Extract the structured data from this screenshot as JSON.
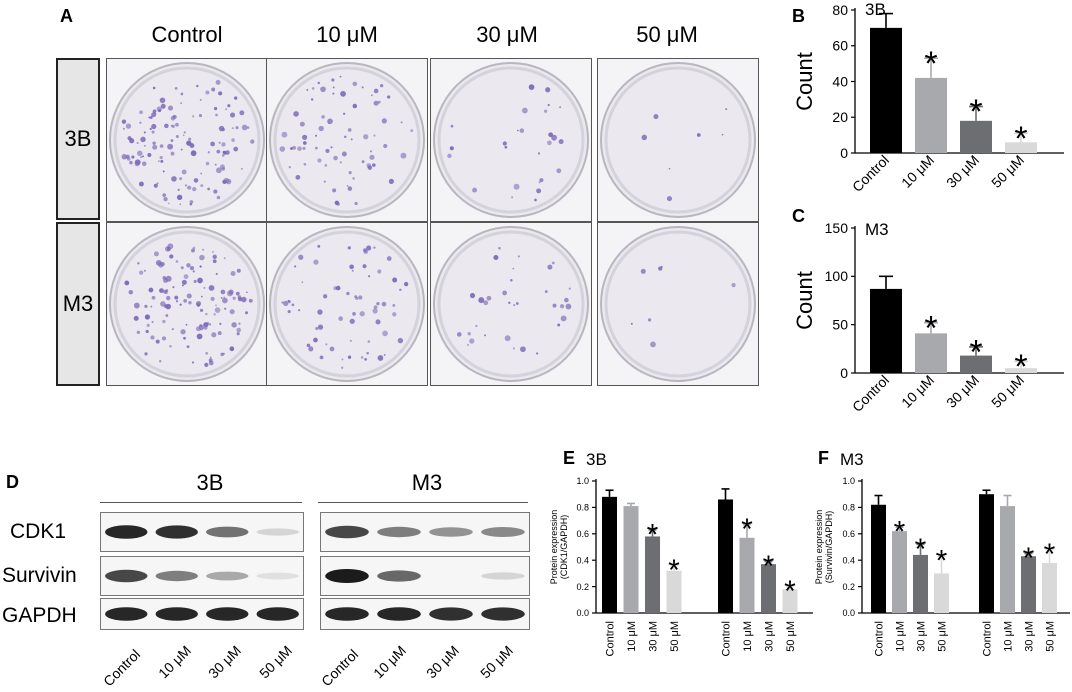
{
  "panel_a": {
    "letter": "A",
    "columns": [
      "Control",
      "10 μM",
      "30 μM",
      "50 μM"
    ],
    "rows": [
      "3B",
      "M3"
    ],
    "colony_density": [
      [
        1.0,
        0.55,
        0.2,
        0.05
      ],
      [
        1.0,
        0.5,
        0.25,
        0.05
      ]
    ]
  },
  "panel_d": {
    "letter": "D",
    "groups": [
      "3B",
      "M3"
    ],
    "proteins": [
      "CDK1",
      "Survivin",
      "GAPDH"
    ],
    "lanes": [
      "Control",
      "10 μM",
      "30 μM",
      "50 μM"
    ],
    "band_intensity": {
      "3B": [
        [
          0.95,
          0.9,
          0.6,
          0.15
        ],
        [
          0.8,
          0.55,
          0.35,
          0.1
        ],
        [
          0.95,
          0.95,
          0.95,
          0.95
        ]
      ],
      "M3": [
        [
          0.8,
          0.55,
          0.45,
          0.5
        ],
        [
          1.0,
          0.65,
          0.0,
          0.15
        ],
        [
          0.95,
          0.95,
          0.9,
          0.9
        ]
      ]
    }
  },
  "colors": {
    "control": "#000000",
    "10uM": "#a7a9ac",
    "30uM": "#6d6e71",
    "50uM": "#d9d9d9"
  },
  "chart_data": [
    {
      "panel": "B",
      "type": "bar",
      "title": "3B",
      "ylabel": "Count",
      "categories": [
        "Control",
        "10 μM",
        "30 μM",
        "50 μM"
      ],
      "values": [
        70,
        42,
        18,
        6
      ],
      "errors": [
        8,
        11,
        8,
        5
      ],
      "significant": [
        false,
        true,
        true,
        true
      ],
      "ylim": [
        0,
        80
      ],
      "yticks": [
        0,
        20,
        40,
        60,
        80
      ]
    },
    {
      "panel": "C",
      "type": "bar",
      "title": "M3",
      "ylabel": "Count",
      "categories": [
        "Control",
        "10 μM",
        "30 μM",
        "50 μM"
      ],
      "values": [
        87,
        41,
        18,
        5
      ],
      "errors": [
        13,
        11,
        9,
        7
      ],
      "significant": [
        false,
        true,
        true,
        true
      ],
      "ylim": [
        0,
        150
      ],
      "yticks": [
        0,
        50,
        100,
        150
      ]
    },
    {
      "panel": "E",
      "type": "bar",
      "title": "3B",
      "ylabel": "Protein expression (CDK1/GAPDH)",
      "categories": [
        "Control",
        "10 μM",
        "30 μM",
        "50 μM",
        "Control",
        "10 μM",
        "30 μM",
        "50 μM"
      ],
      "values": [
        0.88,
        0.81,
        0.58,
        0.32,
        0.86,
        0.57,
        0.37,
        0.18
      ],
      "errors": [
        0.05,
        0.02,
        0.05,
        0.04,
        0.08,
        0.1,
        0.02,
        0.02
      ],
      "significant": [
        false,
        false,
        true,
        true,
        false,
        true,
        true,
        true
      ],
      "ylim": [
        0,
        1.0
      ],
      "yticks": [
        0.0,
        0.2,
        0.4,
        0.6,
        0.8,
        1.0
      ]
    },
    {
      "panel": "F",
      "type": "bar",
      "title": "M3",
      "ylabel": "Protein expression (Survivin/GAPDH)",
      "categories": [
        "Control",
        "10 μM",
        "30 μM",
        "50 μM",
        "Control",
        "10 μM",
        "30 μM",
        "50 μM"
      ],
      "values": [
        0.82,
        0.62,
        0.44,
        0.3,
        0.9,
        0.81,
        0.43,
        0.38
      ],
      "errors": [
        0.07,
        0.03,
        0.08,
        0.13,
        0.03,
        0.08,
        0.02,
        0.1
      ],
      "significant": [
        false,
        true,
        true,
        true,
        false,
        false,
        true,
        true
      ],
      "ylim": [
        0,
        1.0
      ],
      "yticks": [
        0.0,
        0.2,
        0.4,
        0.6,
        0.8,
        1.0
      ]
    }
  ]
}
